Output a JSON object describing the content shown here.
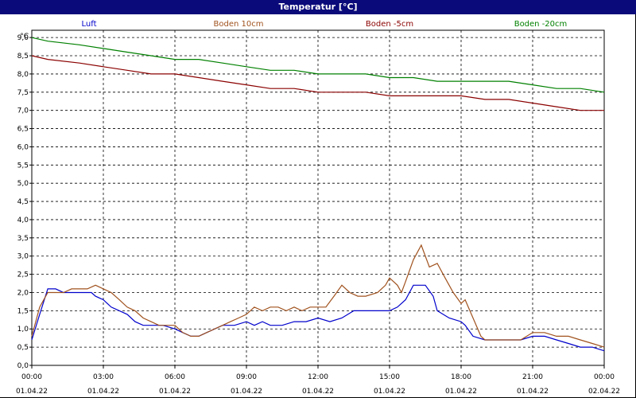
{
  "title": "Temperatur [°C]",
  "chart_data": {
    "type": "line",
    "title": "Temperatur [°C]",
    "ylabel": "°C",
    "ylim": [
      0,
      9.2
    ],
    "y_ticks": [
      "0,0",
      "0,5",
      "1,0",
      "1,5",
      "2,0",
      "2,5",
      "3,0",
      "3,5",
      "4,0",
      "4,5",
      "5,0",
      "5,5",
      "6,0",
      "6,5",
      "7,0",
      "7,5",
      "8,0",
      "8,5",
      "9,0"
    ],
    "x_ticks": [
      {
        "time": "00:00",
        "date": "01.04.22"
      },
      {
        "time": "03:00",
        "date": "01.04.22"
      },
      {
        "time": "06:00",
        "date": "01.04.22"
      },
      {
        "time": "09:00",
        "date": "01.04.22"
      },
      {
        "time": "12:00",
        "date": "01.04.22"
      },
      {
        "time": "15:00",
        "date": "01.04.22"
      },
      {
        "time": "18:00",
        "date": "01.04.22"
      },
      {
        "time": "21:00",
        "date": "01.04.22"
      },
      {
        "time": "00:00",
        "date": "02.04.22"
      }
    ],
    "x_unit": "hours since 01.04.22 00:00",
    "grid": true,
    "legend_position": "top",
    "series": [
      {
        "name": "Luft",
        "color": "#0000cc",
        "points": [
          [
            0,
            0.7
          ],
          [
            0.33,
            1.4
          ],
          [
            0.67,
            2.1
          ],
          [
            1,
            2.1
          ],
          [
            1.33,
            2.0
          ],
          [
            2,
            2.0
          ],
          [
            2.5,
            2.0
          ],
          [
            2.67,
            1.9
          ],
          [
            3,
            1.8
          ],
          [
            3.33,
            1.6
          ],
          [
            4,
            1.4
          ],
          [
            4.33,
            1.2
          ],
          [
            4.67,
            1.1
          ],
          [
            5,
            1.1
          ],
          [
            5.5,
            1.1
          ],
          [
            6,
            1.0
          ],
          [
            6.33,
            0.9
          ],
          [
            6.67,
            0.8
          ],
          [
            7,
            0.8
          ],
          [
            7.33,
            0.9
          ],
          [
            7.67,
            1.0
          ],
          [
            8,
            1.1
          ],
          [
            8.5,
            1.1
          ],
          [
            9,
            1.2
          ],
          [
            9.33,
            1.1
          ],
          [
            9.67,
            1.2
          ],
          [
            10,
            1.1
          ],
          [
            10.5,
            1.1
          ],
          [
            11,
            1.2
          ],
          [
            11.5,
            1.2
          ],
          [
            12,
            1.3
          ],
          [
            12.5,
            1.2
          ],
          [
            13,
            1.3
          ],
          [
            13.5,
            1.5
          ],
          [
            14,
            1.5
          ],
          [
            14.5,
            1.5
          ],
          [
            15,
            1.5
          ],
          [
            15.33,
            1.6
          ],
          [
            15.67,
            1.8
          ],
          [
            16,
            2.2
          ],
          [
            16.5,
            2.2
          ],
          [
            16.83,
            1.9
          ],
          [
            17,
            1.5
          ],
          [
            17.5,
            1.3
          ],
          [
            18,
            1.2
          ],
          [
            18.17,
            1.1
          ],
          [
            18.5,
            0.8
          ],
          [
            19,
            0.7
          ],
          [
            19.5,
            0.7
          ],
          [
            20,
            0.7
          ],
          [
            20.5,
            0.7
          ],
          [
            21,
            0.8
          ],
          [
            21.5,
            0.8
          ],
          [
            22,
            0.7
          ],
          [
            22.5,
            0.6
          ],
          [
            23,
            0.5
          ],
          [
            23.5,
            0.5
          ],
          [
            24,
            0.4
          ]
        ]
      },
      {
        "name": "Boden 10cm",
        "color": "#a0521e",
        "points": [
          [
            0,
            0.8
          ],
          [
            0.33,
            1.6
          ],
          [
            0.67,
            2.0
          ],
          [
            1,
            2.0
          ],
          [
            1.33,
            2.0
          ],
          [
            1.67,
            2.1
          ],
          [
            2,
            2.1
          ],
          [
            2.33,
            2.1
          ],
          [
            2.67,
            2.2
          ],
          [
            3,
            2.1
          ],
          [
            3.33,
            2.0
          ],
          [
            3.67,
            1.8
          ],
          [
            4,
            1.6
          ],
          [
            4.33,
            1.5
          ],
          [
            4.67,
            1.3
          ],
          [
            5,
            1.2
          ],
          [
            5.33,
            1.1
          ],
          [
            5.67,
            1.1
          ],
          [
            6,
            1.1
          ],
          [
            6.33,
            0.9
          ],
          [
            6.67,
            0.8
          ],
          [
            7,
            0.8
          ],
          [
            7.33,
            0.9
          ],
          [
            7.67,
            1.0
          ],
          [
            8,
            1.1
          ],
          [
            8.33,
            1.2
          ],
          [
            8.67,
            1.3
          ],
          [
            9,
            1.4
          ],
          [
            9.33,
            1.6
          ],
          [
            9.67,
            1.5
          ],
          [
            10,
            1.6
          ],
          [
            10.33,
            1.6
          ],
          [
            10.67,
            1.5
          ],
          [
            11,
            1.6
          ],
          [
            11.33,
            1.5
          ],
          [
            11.67,
            1.6
          ],
          [
            12,
            1.6
          ],
          [
            12.33,
            1.6
          ],
          [
            12.67,
            1.9
          ],
          [
            13,
            2.2
          ],
          [
            13.33,
            2.0
          ],
          [
            13.67,
            1.9
          ],
          [
            14,
            1.9
          ],
          [
            14.5,
            2.0
          ],
          [
            14.83,
            2.2
          ],
          [
            15,
            2.4
          ],
          [
            15.33,
            2.2
          ],
          [
            15.5,
            2.0
          ],
          [
            15.67,
            2.3
          ],
          [
            16,
            2.9
          ],
          [
            16.33,
            3.3
          ],
          [
            16.67,
            2.7
          ],
          [
            17,
            2.8
          ],
          [
            17.33,
            2.4
          ],
          [
            17.67,
            2.0
          ],
          [
            18,
            1.7
          ],
          [
            18.17,
            1.8
          ],
          [
            18.5,
            1.3
          ],
          [
            18.83,
            0.8
          ],
          [
            19,
            0.7
          ],
          [
            19.5,
            0.7
          ],
          [
            20,
            0.7
          ],
          [
            20.5,
            0.7
          ],
          [
            21,
            0.9
          ],
          [
            21.5,
            0.9
          ],
          [
            22,
            0.8
          ],
          [
            22.5,
            0.8
          ],
          [
            23,
            0.7
          ],
          [
            23.5,
            0.6
          ],
          [
            24,
            0.5
          ]
        ]
      },
      {
        "name": "Boden -5cm",
        "color": "#8b0000",
        "points": [
          [
            0,
            8.5
          ],
          [
            0.67,
            8.4
          ],
          [
            2.0,
            8.3
          ],
          [
            3.0,
            8.2
          ],
          [
            4.0,
            8.1
          ],
          [
            5.0,
            8.0
          ],
          [
            6.0,
            8.0
          ],
          [
            7.0,
            7.9
          ],
          [
            8.0,
            7.8
          ],
          [
            9.0,
            7.7
          ],
          [
            10.0,
            7.6
          ],
          [
            11.0,
            7.6
          ],
          [
            12.0,
            7.5
          ],
          [
            13.0,
            7.5
          ],
          [
            14.0,
            7.5
          ],
          [
            15.0,
            7.4
          ],
          [
            16.0,
            7.4
          ],
          [
            17.0,
            7.4
          ],
          [
            18.0,
            7.4
          ],
          [
            19.0,
            7.3
          ],
          [
            20.0,
            7.3
          ],
          [
            21.0,
            7.2
          ],
          [
            22.0,
            7.1
          ],
          [
            23.0,
            7.0
          ],
          [
            24.0,
            7.0
          ]
        ]
      },
      {
        "name": "Boden -20cm",
        "color": "#008000",
        "points": [
          [
            0,
            9.0
          ],
          [
            0.67,
            8.9
          ],
          [
            2.0,
            8.8
          ],
          [
            3.0,
            8.7
          ],
          [
            4.0,
            8.6
          ],
          [
            5.0,
            8.5
          ],
          [
            6.0,
            8.4
          ],
          [
            7.0,
            8.4
          ],
          [
            8.0,
            8.3
          ],
          [
            9.0,
            8.2
          ],
          [
            10.0,
            8.1
          ],
          [
            11.0,
            8.1
          ],
          [
            12.0,
            8.0
          ],
          [
            13.0,
            8.0
          ],
          [
            14.0,
            8.0
          ],
          [
            15.0,
            7.9
          ],
          [
            16.0,
            7.9
          ],
          [
            17.0,
            7.8
          ],
          [
            18.0,
            7.8
          ],
          [
            19.0,
            7.8
          ],
          [
            20.0,
            7.8
          ],
          [
            21.0,
            7.7
          ],
          [
            22.0,
            7.6
          ],
          [
            23.0,
            7.6
          ],
          [
            24.0,
            7.5
          ]
        ]
      }
    ]
  }
}
